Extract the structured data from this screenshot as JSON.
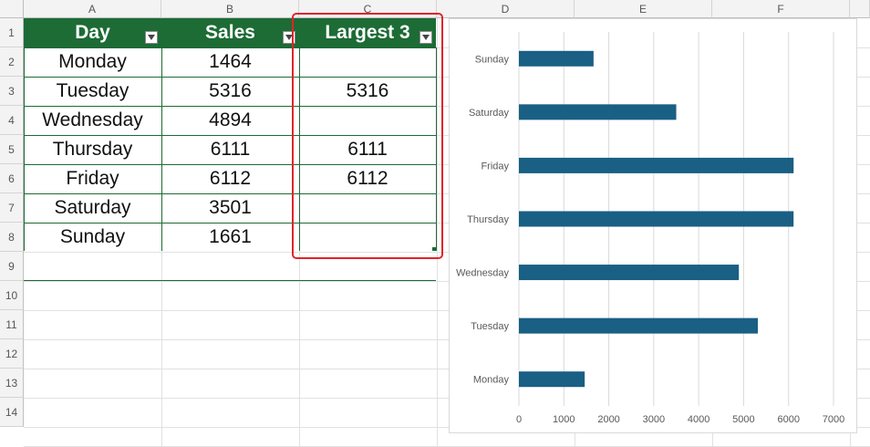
{
  "sheet": {
    "columns": [
      "A",
      "B",
      "C",
      "D",
      "E",
      "F"
    ],
    "rows": [
      "1",
      "2",
      "3",
      "4",
      "5",
      "6",
      "7",
      "8",
      "9",
      "10",
      "11",
      "12",
      "13",
      "14"
    ]
  },
  "table": {
    "headers": [
      "Day",
      "Sales",
      "Largest 3"
    ],
    "rows": [
      {
        "day": "Monday",
        "sales": "1464",
        "largest": ""
      },
      {
        "day": "Tuesday",
        "sales": "5316",
        "largest": "5316"
      },
      {
        "day": "Wednesday",
        "sales": "4894",
        "largest": ""
      },
      {
        "day": "Thursday",
        "sales": "6111",
        "largest": "6111"
      },
      {
        "day": "Friday",
        "sales": "6112",
        "largest": "6112"
      },
      {
        "day": "Saturday",
        "sales": "3501",
        "largest": ""
      },
      {
        "day": "Sunday",
        "sales": "1661",
        "largest": ""
      }
    ],
    "header_color": "#1d6b35",
    "selection_color": "#e0242b"
  },
  "chart_data": {
    "type": "bar",
    "orientation": "horizontal",
    "categories": [
      "Monday",
      "Tuesday",
      "Wednesday",
      "Thursday",
      "Friday",
      "Saturday",
      "Sunday"
    ],
    "values": [
      1464,
      5316,
      4894,
      6111,
      6112,
      3501,
      1661
    ],
    "xlim": [
      0,
      7000
    ],
    "xticks": [
      "0",
      "1000",
      "2000",
      "3000",
      "4000",
      "5000",
      "6000",
      "7000"
    ],
    "grid": "vertical",
    "bar_color": "#1a5f84",
    "title": "",
    "xlabel": "",
    "ylabel": ""
  }
}
